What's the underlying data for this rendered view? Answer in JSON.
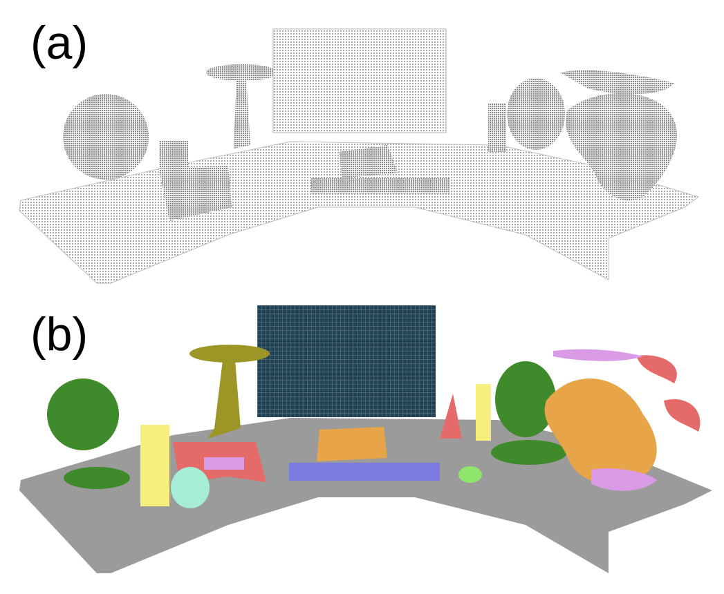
{
  "panels": [
    {
      "label": "(a)"
    },
    {
      "label": "(b)"
    }
  ],
  "colors": {
    "raw_points": "#c8c8c8",
    "raw_points_dark": "#9a9a9a",
    "table": "#9b9b9b",
    "monitor": "#1f4255",
    "globe": "#3f8a2a",
    "lamp": "#9c9626",
    "cylinder": "#f6ef7e",
    "red": "#e46b6a",
    "orange": "#e7a449",
    "purple_blue": "#7a7ae0",
    "violet": "#d99be6",
    "mint": "#a6ecd7",
    "lime": "#8ee66a"
  }
}
